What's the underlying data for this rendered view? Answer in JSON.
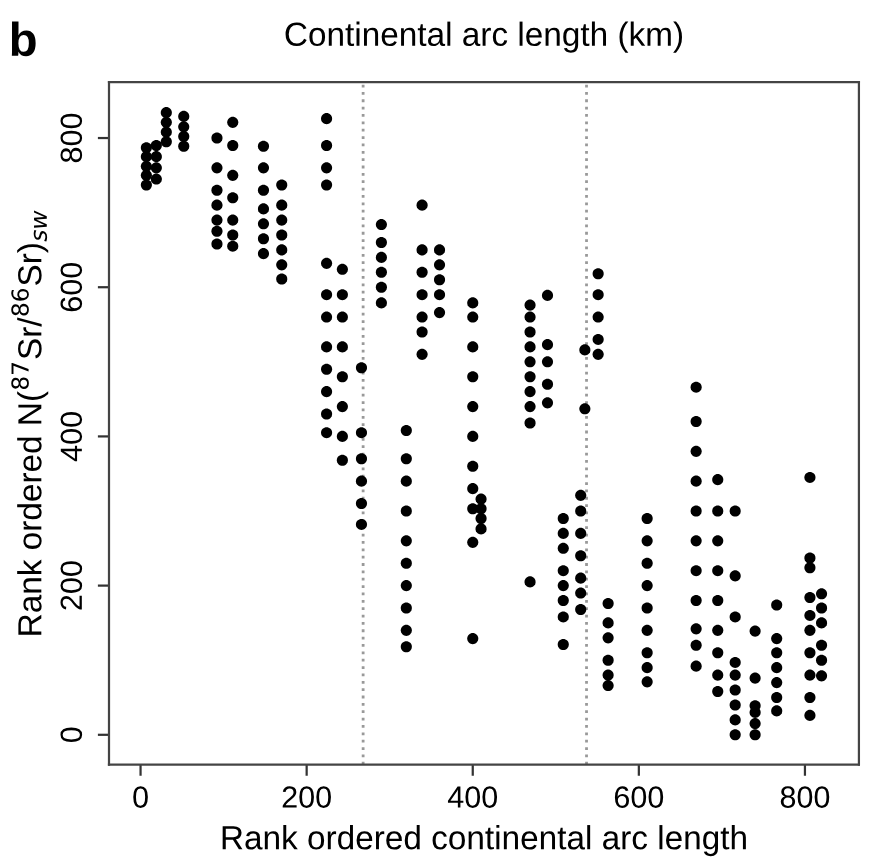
{
  "chart_data": {
    "type": "scatter",
    "xlabel": "Rank ordered continental arc length",
    "ylabel": "Rank ordered N($^{87}$Sr/$^{86}$Sr)$_{sw}$",
    "annotations": [
      "b",
      "Continental arc length (km)"
    ],
    "xlim": [
      -38,
      865
    ],
    "ylim": [
      -40,
      875
    ],
    "xticks": [
      0,
      200,
      400,
      600,
      800
    ],
    "yticks": [
      0,
      200,
      400,
      600,
      800
    ],
    "grid": false,
    "marker": "circle",
    "ref_lines": [
      {
        "axis": "x",
        "value": 268,
        "color": "#999999",
        "line_style": "dotted"
      },
      {
        "axis": "x",
        "value": 537,
        "color": "#999999",
        "line_style": "dotted"
      }
    ],
    "series": [
      {
        "color": "#000000",
        "x": [
          7,
          7,
          7,
          7,
          7,
          19,
          19,
          19,
          19,
          31,
          31,
          31,
          31,
          52,
          52,
          52,
          52,
          92,
          92,
          92,
          92,
          92,
          92,
          92,
          111,
          111,
          111,
          111,
          111,
          111,
          111,
          148,
          148,
          148,
          148,
          148,
          148,
          148,
          170,
          170,
          170,
          170,
          170,
          170,
          170,
          224,
          224,
          224,
          224,
          224,
          224,
          224,
          224,
          224,
          224,
          224,
          224,
          243,
          243,
          243,
          243,
          243,
          243,
          243,
          243,
          266,
          266,
          266,
          266,
          266,
          266,
          290,
          290,
          290,
          290,
          290,
          290,
          320,
          320,
          320,
          320,
          320,
          320,
          320,
          320,
          320,
          320,
          339,
          339,
          339,
          339,
          339,
          339,
          339,
          360,
          360,
          360,
          360,
          360,
          400,
          400,
          400,
          400,
          400,
          400,
          400,
          400,
          400,
          400,
          400,
          410,
          410,
          410,
          410,
          469,
          469,
          469,
          469,
          469,
          469,
          469,
          469,
          469,
          469,
          490,
          490,
          490,
          490,
          490,
          509,
          509,
          509,
          509,
          509,
          509,
          509,
          509,
          530,
          530,
          530,
          530,
          530,
          530,
          530,
          535,
          535,
          551,
          551,
          551,
          551,
          551,
          563,
          563,
          563,
          563,
          563,
          563,
          610,
          610,
          610,
          610,
          610,
          610,
          610,
          610,
          610,
          669,
          669,
          669,
          669,
          669,
          669,
          669,
          669,
          669,
          669,
          669,
          695,
          695,
          695,
          695,
          695,
          695,
          695,
          695,
          695,
          716,
          716,
          716,
          716,
          716,
          716,
          716,
          716,
          716,
          740,
          740,
          740,
          740,
          740,
          740,
          766,
          766,
          766,
          766,
          766,
          766,
          766,
          806,
          806,
          806,
          806,
          806,
          806,
          806,
          806,
          806,
          806,
          820,
          820,
          820,
          820,
          820,
          820
        ],
        "values": [
          737,
          750,
          762,
          775,
          787,
          745,
          760,
          775,
          790,
          795,
          808,
          821,
          834,
          789,
          802,
          815,
          829,
          658,
          675,
          690,
          710,
          730,
          760,
          800,
          655,
          670,
          690,
          720,
          750,
          790,
          821,
          645,
          665,
          685,
          705,
          730,
          760,
          789,
          611,
          630,
          650,
          670,
          690,
          710,
          737,
          405,
          430,
          460,
          490,
          520,
          560,
          590,
          632,
          737,
          760,
          790,
          826,
          368,
          400,
          440,
          480,
          520,
          560,
          590,
          624,
          282,
          310,
          340,
          370,
          405,
          492,
          579,
          600,
          620,
          640,
          660,
          684,
          118,
          140,
          170,
          200,
          230,
          260,
          300,
          340,
          370,
          408,
          510,
          540,
          560,
          590,
          620,
          650,
          710,
          566,
          590,
          610,
          630,
          650,
          129,
          258,
          303,
          330,
          360,
          400,
          440,
          480,
          520,
          560,
          579,
          276,
          290,
          303,
          316,
          205,
          418,
          440,
          460,
          480,
          500,
          520,
          540,
          560,
          576,
          445,
          470,
          500,
          523,
          589,
          121,
          158,
          180,
          200,
          220,
          250,
          270,
          290,
          168,
          190,
          210,
          240,
          270,
          300,
          321,
          437,
          516,
          510,
          530,
          560,
          590,
          618,
          66,
          80,
          100,
          130,
          150,
          176,
          71,
          90,
          110,
          140,
          170,
          200,
          230,
          260,
          290,
          92,
          120,
          142,
          180,
          220,
          260,
          300,
          340,
          380,
          420,
          466,
          58,
          80,
          110,
          140,
          180,
          220,
          260,
          300,
          342,
          0,
          20,
          40,
          60,
          80,
          97,
          158,
          213,
          300,
          0,
          15,
          30,
          39,
          76,
          139,
          32,
          50,
          70,
          90,
          110,
          129,
          174,
          26,
          50,
          80,
          110,
          140,
          160,
          184,
          224,
          237,
          345,
          79,
          100,
          120,
          150,
          170,
          189
        ]
      }
    ]
  }
}
